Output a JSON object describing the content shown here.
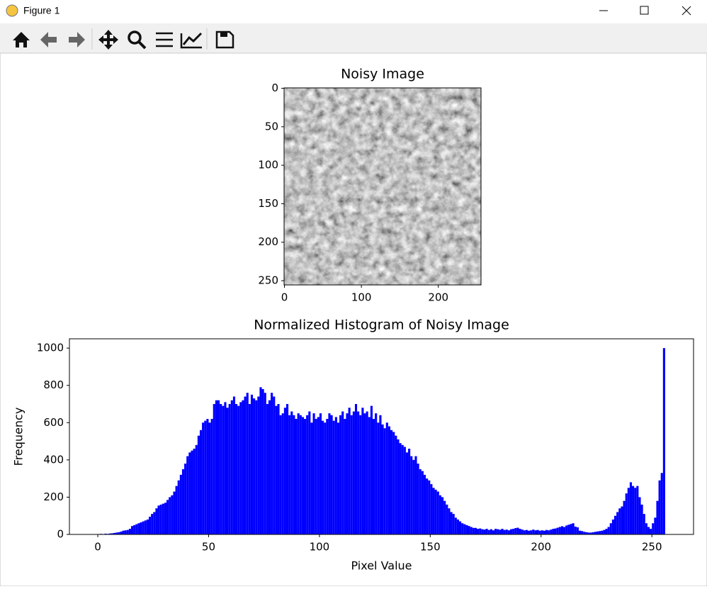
{
  "window": {
    "title": "Figure 1"
  },
  "chart_data": [
    {
      "type": "image",
      "title": "Noisy Image",
      "xlim": [
        -0.5,
        255.5
      ],
      "ylim": [
        255.5,
        -0.5
      ],
      "xticks": [
        0,
        100,
        200
      ],
      "yticks": [
        0,
        50,
        100,
        150,
        200,
        250
      ]
    },
    {
      "type": "histogram",
      "title": "Normalized Histogram of Noisy Image",
      "x_label": "Pixel Value",
      "y_label": "Frequency",
      "color": "blue",
      "bins": [
        0,
        1,
        2,
        3,
        4,
        5,
        6,
        7,
        8,
        9,
        10,
        11,
        12,
        13,
        14,
        15,
        16,
        17,
        18,
        19,
        20,
        21,
        22,
        23,
        24,
        25,
        26,
        27,
        28,
        29,
        30,
        31,
        32,
        33,
        34,
        35,
        36,
        37,
        38,
        39,
        40,
        41,
        42,
        43,
        44,
        45,
        46,
        47,
        48,
        49,
        50,
        51,
        52,
        53,
        54,
        55,
        56,
        57,
        58,
        59,
        60,
        61,
        62,
        63,
        64,
        65,
        66,
        67,
        68,
        69,
        70,
        71,
        72,
        73,
        74,
        75,
        76,
        77,
        78,
        79,
        80,
        81,
        82,
        83,
        84,
        85,
        86,
        87,
        88,
        89,
        90,
        91,
        92,
        93,
        94,
        95,
        96,
        97,
        98,
        99,
        100,
        101,
        102,
        103,
        104,
        105,
        106,
        107,
        108,
        109,
        110,
        111,
        112,
        113,
        114,
        115,
        116,
        117,
        118,
        119,
        120,
        121,
        122,
        123,
        124,
        125,
        126,
        127,
        128,
        129,
        130,
        131,
        132,
        133,
        134,
        135,
        136,
        137,
        138,
        139,
        140,
        141,
        142,
        143,
        144,
        145,
        146,
        147,
        148,
        149,
        150,
        151,
        152,
        153,
        154,
        155,
        156,
        157,
        158,
        159,
        160,
        161,
        162,
        163,
        164,
        165,
        166,
        167,
        168,
        169,
        170,
        171,
        172,
        173,
        174,
        175,
        176,
        177,
        178,
        179,
        180,
        181,
        182,
        183,
        184,
        185,
        186,
        187,
        188,
        189,
        190,
        191,
        192,
        193,
        194,
        195,
        196,
        197,
        198,
        199,
        200,
        201,
        202,
        203,
        204,
        205,
        206,
        207,
        208,
        209,
        210,
        211,
        212,
        213,
        214,
        215,
        216,
        217,
        218,
        219,
        220,
        221,
        222,
        223,
        224,
        225,
        226,
        227,
        228,
        229,
        230,
        231,
        232,
        233,
        234,
        235,
        236,
        237,
        238,
        239,
        240,
        241,
        242,
        243,
        244,
        245,
        246,
        247,
        248,
        249,
        250,
        251,
        252,
        253,
        254,
        255,
        256
      ],
      "values": [
        2,
        3,
        2,
        4,
        3,
        5,
        6,
        8,
        10,
        12,
        15,
        20,
        22,
        24,
        30,
        45,
        50,
        55,
        60,
        65,
        70,
        75,
        80,
        95,
        110,
        120,
        140,
        155,
        160,
        165,
        170,
        185,
        200,
        210,
        230,
        260,
        290,
        320,
        350,
        380,
        420,
        440,
        450,
        460,
        480,
        530,
        560,
        600,
        610,
        620,
        600,
        620,
        700,
        720,
        720,
        700,
        690,
        710,
        680,
        700,
        720,
        740,
        700,
        690,
        710,
        720,
        740,
        760,
        700,
        750,
        730,
        720,
        740,
        790,
        780,
        760,
        700,
        720,
        760,
        740,
        690,
        700,
        640,
        650,
        680,
        700,
        640,
        660,
        640,
        620,
        650,
        640,
        630,
        620,
        640,
        660,
        600,
        650,
        620,
        630,
        650,
        610,
        600,
        620,
        650,
        640,
        610,
        630,
        600,
        640,
        660,
        620,
        650,
        680,
        640,
        660,
        700,
        660,
        640,
        680,
        650,
        660,
        630,
        690,
        620,
        650,
        600,
        640,
        590,
        570,
        600,
        580,
        560,
        550,
        530,
        510,
        490,
        480,
        470,
        440,
        460,
        420,
        400,
        420,
        380,
        350,
        340,
        320,
        300,
        290,
        270,
        250,
        240,
        230,
        210,
        200,
        180,
        160,
        140,
        120,
        110,
        90,
        80,
        70,
        60,
        55,
        50,
        45,
        40,
        35,
        35,
        30,
        32,
        28,
        26,
        30,
        24,
        28,
        22,
        30,
        28,
        25,
        30,
        24,
        26,
        22,
        28,
        30,
        34,
        36,
        30,
        26,
        22,
        24,
        20,
        22,
        26,
        22,
        24,
        20,
        22,
        20,
        24,
        22,
        26,
        30,
        32,
        36,
        40,
        44,
        40,
        48,
        52,
        56,
        60,
        42,
        38,
        20,
        18,
        14,
        12,
        10,
        10,
        12,
        14,
        16,
        18,
        20,
        24,
        30,
        40,
        60,
        80,
        100,
        120,
        140,
        150,
        180,
        220,
        250,
        280,
        260,
        250,
        260,
        200,
        160,
        110,
        60,
        40,
        30,
        60,
        90,
        180,
        290,
        330,
        1000
      ],
      "xlim": [
        -12.8,
        268.8
      ],
      "ylim": [
        0,
        1050
      ],
      "xticks": [
        0,
        50,
        100,
        150,
        200,
        250
      ],
      "yticks": [
        0,
        200,
        400,
        600,
        800,
        1000
      ]
    }
  ]
}
